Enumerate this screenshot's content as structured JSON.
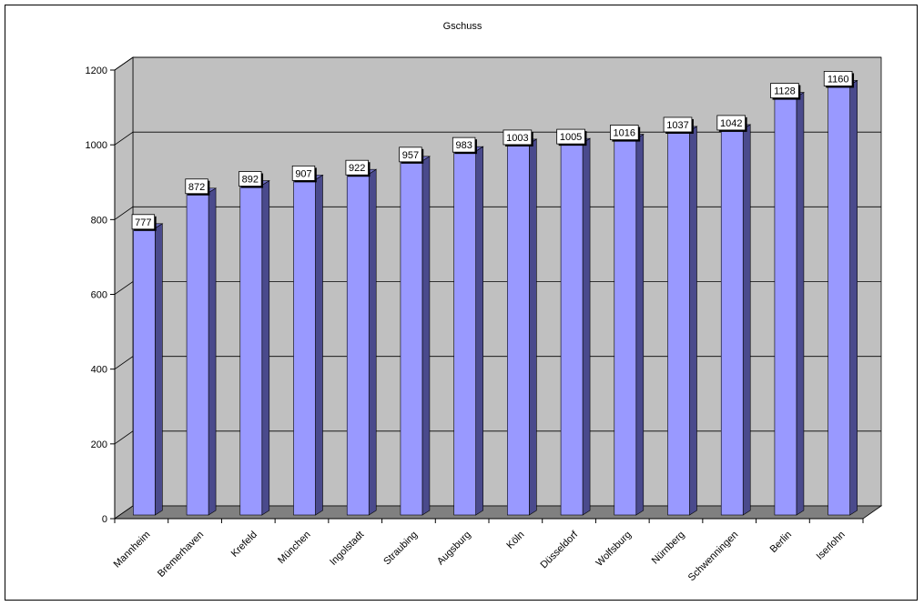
{
  "chart_data": {
    "type": "bar",
    "title": "Gschuss",
    "xlabel": "",
    "ylabel": "",
    "categories": [
      "Mannheim",
      "Bremerhaven",
      "Krefeld",
      "München",
      "Ingolstadt",
      "Straubing",
      "Augsburg",
      "Köln",
      "Düsseldorf",
      "Wolfsburg",
      "Nürnberg",
      "Schwenningen",
      "Berlin",
      "Iserlohn"
    ],
    "values": [
      777,
      872,
      892,
      907,
      922,
      957,
      983,
      1003,
      1005,
      1016,
      1037,
      1042,
      1128,
      1160
    ],
    "ylim": [
      0,
      1200
    ],
    "yticks": [
      0,
      200,
      400,
      600,
      800,
      1000,
      1200
    ],
    "grid": true,
    "legend": "none",
    "colors": {
      "bar_front": "#9999ff",
      "bar_side": "#4a4a8c",
      "bar_top": "#6f6fc0",
      "wall": "#c0c0c0",
      "floor": "#808080"
    }
  }
}
